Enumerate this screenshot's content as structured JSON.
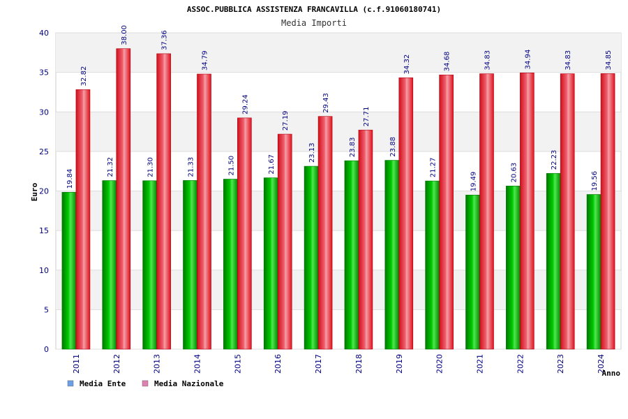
{
  "chart_data": {
    "type": "bar",
    "title": "ASSOC.PUBBLICA ASSISTENZA FRANCAVILLA (c.f.91060180741)",
    "subtitle": "Media Importi",
    "xlabel": "Anno",
    "ylabel": "Euro",
    "ylim": [
      0,
      40
    ],
    "yticks": [
      0,
      5,
      10,
      15,
      20,
      25,
      30,
      35,
      40
    ],
    "grid": true,
    "legend_position": "bottom-left",
    "categories": [
      "2011",
      "2012",
      "2013",
      "2014",
      "2015",
      "2016",
      "2017",
      "2018",
      "2019",
      "2020",
      "2021",
      "2022",
      "2023",
      "2024"
    ],
    "series": [
      {
        "name": "Media Ente",
        "color": "#00c000",
        "legend_color": "#6aa0e8",
        "values": [
          19.84,
          21.32,
          21.3,
          21.33,
          21.5,
          21.67,
          23.13,
          23.83,
          23.88,
          21.27,
          19.49,
          20.63,
          22.23,
          19.56
        ],
        "labels": [
          "19.84",
          "21.32",
          "21.30",
          "21.33",
          "21.50",
          "21.67",
          "23.13",
          "23.83",
          "23.88",
          "21.27",
          "19.49",
          "20.63",
          "22.23",
          "19.56"
        ]
      },
      {
        "name": "Media Nazionale",
        "color": "#e8202a",
        "legend_color": "#e080b0",
        "values": [
          32.82,
          38.0,
          37.36,
          34.79,
          29.24,
          27.19,
          29.43,
          27.71,
          34.32,
          34.68,
          34.83,
          34.94,
          34.83,
          34.85
        ],
        "labels": [
          "32.82",
          "38.00",
          "37.36",
          "34.79",
          "29.24",
          "27.19",
          "29.43",
          "27.71",
          "34.32",
          "34.68",
          "34.83",
          "34.94",
          "34.83",
          "34.85"
        ]
      }
    ]
  }
}
